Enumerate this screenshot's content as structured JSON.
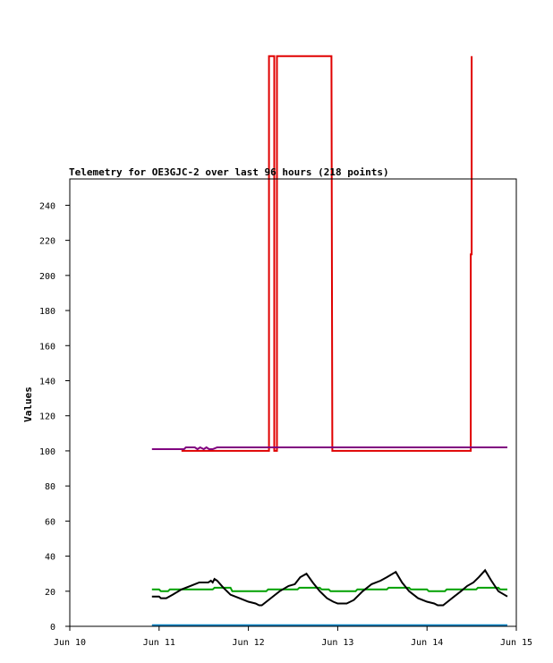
{
  "chart_data": {
    "type": "line",
    "title": "Telemetry for OE3GJC-2 over last 96 hours (218 points)",
    "xlabel": "",
    "ylabel": "Values",
    "xlim": [
      "Jun 10",
      "Jun 15"
    ],
    "ylim": [
      0,
      255
    ],
    "x_ticks": [
      "Jun 10",
      "Jun 11",
      "Jun 12",
      "Jun 13",
      "Jun 14",
      "Jun 15"
    ],
    "y_ticks": [
      0,
      20,
      40,
      60,
      80,
      100,
      120,
      140,
      160,
      180,
      200,
      220,
      240
    ],
    "grid": false,
    "legend": "none",
    "series": [
      {
        "color": "#e00000",
        "points": [
          [
            11.25,
            100
          ],
          [
            12.12,
            100
          ],
          [
            12.12,
            100
          ],
          [
            12.2,
            100
          ],
          [
            12.2,
            100
          ],
          [
            12.23,
            100
          ],
          [
            12.23,
            325
          ],
          [
            12.29,
            325
          ],
          [
            12.29,
            100
          ],
          [
            12.32,
            100
          ],
          [
            12.32,
            325
          ],
          [
            12.93,
            325
          ],
          [
            12.94,
            100
          ],
          [
            14.49,
            100
          ],
          [
            14.49,
            212
          ],
          [
            14.5,
            212
          ],
          [
            14.5,
            325
          ]
        ]
      },
      {
        "color": "#800080",
        "points": [
          [
            10.92,
            101
          ],
          [
            11.28,
            101
          ],
          [
            11.3,
            102
          ],
          [
            11.4,
            102
          ],
          [
            11.43,
            101
          ],
          [
            11.46,
            102
          ],
          [
            11.5,
            101
          ],
          [
            11.53,
            102
          ],
          [
            11.56,
            101
          ],
          [
            11.6,
            101
          ],
          [
            11.65,
            102
          ],
          [
            14.9,
            102
          ]
        ]
      },
      {
        "color": "#00a000",
        "points": [
          [
            10.92,
            21
          ],
          [
            11.0,
            21
          ],
          [
            11.02,
            20
          ],
          [
            11.1,
            20
          ],
          [
            11.12,
            21
          ],
          [
            11.6,
            21
          ],
          [
            11.62,
            22
          ],
          [
            11.8,
            22
          ],
          [
            11.82,
            20
          ],
          [
            12.2,
            20
          ],
          [
            12.22,
            21
          ],
          [
            12.55,
            21
          ],
          [
            12.57,
            22
          ],
          [
            12.8,
            22
          ],
          [
            12.82,
            21
          ],
          [
            12.9,
            21
          ],
          [
            12.92,
            20
          ],
          [
            13.2,
            20
          ],
          [
            13.22,
            21
          ],
          [
            13.55,
            21
          ],
          [
            13.57,
            22
          ],
          [
            13.8,
            22
          ],
          [
            13.82,
            21
          ],
          [
            14.0,
            21
          ],
          [
            14.02,
            20
          ],
          [
            14.2,
            20
          ],
          [
            14.22,
            21
          ],
          [
            14.55,
            21
          ],
          [
            14.57,
            22
          ],
          [
            14.8,
            22
          ],
          [
            14.82,
            21
          ],
          [
            14.9,
            21
          ]
        ]
      },
      {
        "color": "#000000",
        "points": [
          [
            10.92,
            17
          ],
          [
            11.0,
            17
          ],
          [
            11.02,
            16
          ],
          [
            11.08,
            16
          ],
          [
            11.15,
            18
          ],
          [
            11.25,
            21
          ],
          [
            11.35,
            23
          ],
          [
            11.45,
            25
          ],
          [
            11.55,
            25
          ],
          [
            11.58,
            26
          ],
          [
            11.6,
            25
          ],
          [
            11.62,
            27
          ],
          [
            11.65,
            26
          ],
          [
            11.72,
            22
          ],
          [
            11.8,
            18
          ],
          [
            11.9,
            16
          ],
          [
            12.0,
            14
          ],
          [
            12.08,
            13
          ],
          [
            12.12,
            12
          ],
          [
            12.15,
            12
          ],
          [
            12.25,
            16
          ],
          [
            12.35,
            20
          ],
          [
            12.45,
            23
          ],
          [
            12.52,
            24
          ],
          [
            12.58,
            28
          ],
          [
            12.65,
            30
          ],
          [
            12.72,
            25
          ],
          [
            12.8,
            20
          ],
          [
            12.88,
            16
          ],
          [
            12.95,
            14
          ],
          [
            13.0,
            13
          ],
          [
            13.1,
            13
          ],
          [
            13.18,
            15
          ],
          [
            13.28,
            20
          ],
          [
            13.38,
            24
          ],
          [
            13.48,
            26
          ],
          [
            13.55,
            28
          ],
          [
            13.65,
            31
          ],
          [
            13.72,
            25
          ],
          [
            13.8,
            20
          ],
          [
            13.9,
            16
          ],
          [
            14.0,
            14
          ],
          [
            14.08,
            13
          ],
          [
            14.12,
            12
          ],
          [
            14.18,
            12
          ],
          [
            14.28,
            16
          ],
          [
            14.38,
            20
          ],
          [
            14.45,
            23
          ],
          [
            14.52,
            25
          ],
          [
            14.58,
            28
          ],
          [
            14.65,
            32
          ],
          [
            14.72,
            26
          ],
          [
            14.8,
            20
          ],
          [
            14.9,
            17
          ]
        ]
      },
      {
        "color": "#0080c0",
        "points": [
          [
            10.92,
            0.6
          ],
          [
            14.9,
            0.6
          ]
        ]
      }
    ]
  }
}
